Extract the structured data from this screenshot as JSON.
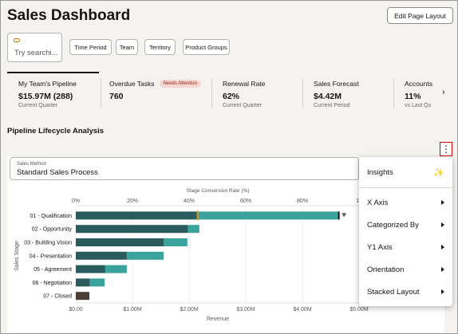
{
  "header": {
    "title": "Sales Dashboard",
    "edit_layout_label": "Edit Page Layout"
  },
  "search": {
    "placeholder": "Try searchi..."
  },
  "filters": [
    "Time Period",
    "Team",
    "Territory",
    "Product Groups"
  ],
  "metrics": [
    {
      "title": "My Team's Pipeline",
      "value": "$15.97M (288)",
      "sub": "Current Quarter"
    },
    {
      "title": "Overdue Tasks",
      "value": "760",
      "badge": "Needs Attention"
    },
    {
      "title": "Renewal Rate",
      "value": "62%",
      "sub": "Current Quarter"
    },
    {
      "title": "Sales Forecast",
      "value": "$4.42M",
      "sub": "Current Period"
    },
    {
      "title": "Accounts",
      "value": "11%",
      "sub": "vs Last Qu"
    }
  ],
  "section_title": "Pipeline Lifecycle Analysis",
  "sales_method": {
    "label": "Sales Method",
    "value": "Standard Sales Process"
  },
  "menu": {
    "insights": "Insights",
    "items": [
      "X Axis",
      "Categorized By",
      "Y1 Axis",
      "Orientation",
      "Stacked Layout"
    ]
  },
  "colors": {
    "dark_teal": "#2a5c5e",
    "light_teal": "#3aa39c",
    "closed": "#4a3e36",
    "marker": "#e09a1a",
    "alert_red": "#d40000"
  },
  "chart_data": {
    "type": "bar",
    "orientation": "horizontal",
    "stacked": true,
    "categories": [
      "01 - Qualification",
      "02 - Opportunity",
      "03 - Building Vision",
      "04 - Presentation",
      "05 - Agreement",
      "06 - Negotiation",
      "07 - Closed"
    ],
    "series": [
      {
        "values": [
          2.15,
          1.98,
          1.55,
          0.9,
          0.52,
          0.25,
          0.24
        ],
        "color": "#2a5c5e"
      },
      {
        "values": [
          2.5,
          0.2,
          0.42,
          0.65,
          0.38,
          0.26,
          0.0
        ],
        "color": "#3aa39c"
      }
    ],
    "xlabel": "Revenue",
    "ylabel": "Sales Stage",
    "xlim": [
      0,
      5
    ],
    "xticks": [
      "$0.00",
      "$1.00M",
      "$2.00M",
      "$3.00M",
      "$4.00M",
      "$5.00M"
    ],
    "top_axis_label": "Stage Conversion Rate (%)",
    "top_ticks": [
      "0%",
      "20%",
      "40%",
      "60%",
      "80%",
      "10"
    ],
    "conversion_marker_pct": 43
  }
}
